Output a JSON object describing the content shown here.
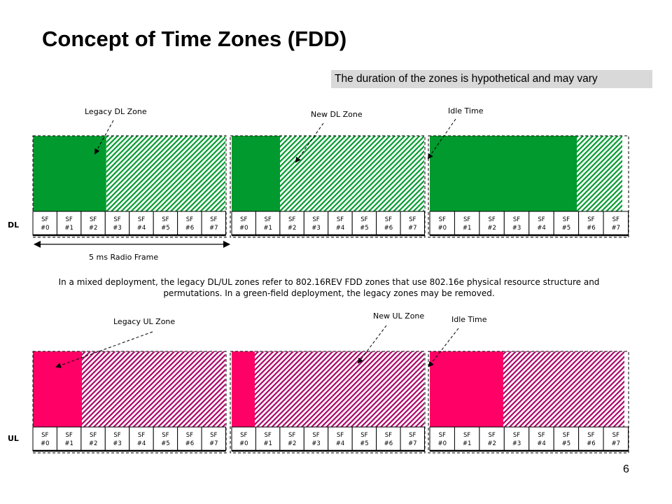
{
  "slide": {
    "title": "Concept of Time Zones (FDD)",
    "note": "The duration of the zones is hypothetical and may vary",
    "description": "In a mixed deployment, the legacy DL/UL zones refer to 802.16REV FDD zones that use 802.16e physical resource structure and permutations. In a green-field deployment, the legacy zones may be removed.",
    "page_number": "6"
  },
  "dl": {
    "row_label": "DL",
    "labels": {
      "legacy": "Legacy DL Zone",
      "new": "New DL Zone",
      "idle": "Idle Time"
    },
    "subframe_prefix": "SF",
    "subframes": [
      "#0",
      "#1",
      "#2",
      "#3",
      "#4",
      "#5",
      "#6",
      "#7"
    ],
    "radio_frame_label": "5 ms Radio Frame",
    "colors": {
      "solid": "#009a2e",
      "hatch": "#009a2e"
    }
  },
  "ul": {
    "row_label": "UL",
    "labels": {
      "legacy": "Legacy UL Zone",
      "new": "New UL Zone",
      "idle": "Idle Time"
    },
    "subframe_prefix": "SF",
    "subframes": [
      "#0",
      "#1",
      "#2",
      "#3",
      "#4",
      "#5",
      "#6",
      "#7"
    ],
    "colors": {
      "solid": "#ff0066",
      "hatch": "#aa0066"
    }
  }
}
